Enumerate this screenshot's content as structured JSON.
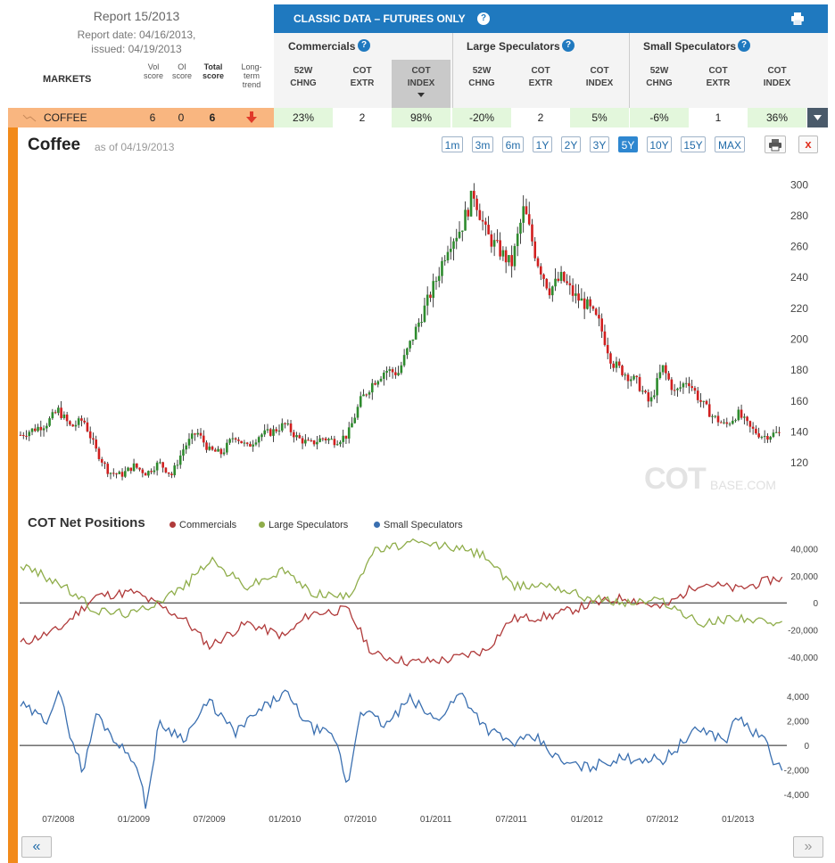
{
  "report": {
    "title": "Report 15/2013",
    "date": "Report date: 04/16/2013,",
    "issued": "issued: 04/19/2013"
  },
  "markets_header": {
    "markets": "MARKETS",
    "vol_score": "Vol score",
    "oi_score": "OI score",
    "total_score": "Total score",
    "long_term_trend": "Long-term trend"
  },
  "classic": {
    "title": "CLASSIC DATA – FUTURES ONLY",
    "help": "?",
    "groups": [
      {
        "label": "Commercials"
      },
      {
        "label": "Large Speculators"
      },
      {
        "label": "Small Speculators"
      }
    ],
    "subheaders": [
      {
        "l1": "52W",
        "l2": "CHNG"
      },
      {
        "l1": "COT",
        "l2": "EXTR"
      },
      {
        "l1": "COT",
        "l2": "INDEX"
      }
    ]
  },
  "row": {
    "name": "COFFEE",
    "vol_score": "6",
    "oi_score": "0",
    "total_score": "6",
    "trend": "down",
    "cells": [
      "23%",
      "2",
      "98%",
      "-20%",
      "2",
      "5%",
      "-6%",
      "1",
      "36%"
    ]
  },
  "chart_header": {
    "title": "Coffee",
    "asof": "as of 04/19/2013",
    "ranges": [
      "1m",
      "3m",
      "6m",
      "1Y",
      "2Y",
      "3Y",
      "5Y",
      "10Y",
      "15Y",
      "MAX"
    ],
    "active_range": "5Y",
    "close": "x"
  },
  "watermark": {
    "main": "COT",
    "suffix": "BASE.COM"
  },
  "cot_panel": {
    "title": "COT Net Positions",
    "legend": [
      "Commercials",
      "Large Speculators",
      "Small Speculators"
    ]
  },
  "nav": {
    "prev": "«",
    "next": "»"
  },
  "colors": {
    "up_candle": "#2e8b2e",
    "down_candle": "#d11f1f",
    "commercials": "#b03a3a",
    "large_specs": "#8fad4a",
    "small_specs": "#3a6fb0",
    "accent": "#1f79bf",
    "row_highlight": "#f9b680",
    "stripe": "#f28a1a"
  },
  "chart_data": [
    {
      "type": "candlestick",
      "title": "Coffee",
      "x_range": [
        "2008-04",
        "2013-04"
      ],
      "ylim": [
        105,
        310
      ],
      "y_ticks": [
        120,
        140,
        160,
        180,
        200,
        220,
        240,
        260,
        280,
        300
      ],
      "x_ticks": [
        "07/2008",
        "01/2009",
        "07/2009",
        "01/2010",
        "07/2010",
        "01/2011",
        "07/2011",
        "01/2012",
        "07/2012",
        "01/2013"
      ],
      "close_path": [
        {
          "x": "2008-04",
          "y": 138
        },
        {
          "x": "2008-06",
          "y": 145
        },
        {
          "x": "2008-07",
          "y": 154
        },
        {
          "x": "2008-08",
          "y": 143
        },
        {
          "x": "2008-09",
          "y": 148
        },
        {
          "x": "2008-10",
          "y": 128
        },
        {
          "x": "2008-11",
          "y": 114
        },
        {
          "x": "2008-12",
          "y": 112
        },
        {
          "x": "2009-01",
          "y": 118
        },
        {
          "x": "2009-02",
          "y": 113
        },
        {
          "x": "2009-03",
          "y": 120
        },
        {
          "x": "2009-04",
          "y": 112
        },
        {
          "x": "2009-05",
          "y": 130
        },
        {
          "x": "2009-06",
          "y": 140
        },
        {
          "x": "2009-07",
          "y": 128
        },
        {
          "x": "2009-08",
          "y": 126
        },
        {
          "x": "2009-09",
          "y": 138
        },
        {
          "x": "2009-10",
          "y": 130
        },
        {
          "x": "2009-11",
          "y": 138
        },
        {
          "x": "2009-12",
          "y": 140
        },
        {
          "x": "2010-01",
          "y": 145
        },
        {
          "x": "2010-02",
          "y": 136
        },
        {
          "x": "2010-03",
          "y": 132
        },
        {
          "x": "2010-04",
          "y": 136
        },
        {
          "x": "2010-05",
          "y": 134
        },
        {
          "x": "2010-06",
          "y": 138
        },
        {
          "x": "2010-07",
          "y": 160
        },
        {
          "x": "2010-08",
          "y": 172
        },
        {
          "x": "2010-09",
          "y": 180
        },
        {
          "x": "2010-10",
          "y": 178
        },
        {
          "x": "2010-11",
          "y": 198
        },
        {
          "x": "2010-12",
          "y": 218
        },
        {
          "x": "2011-01",
          "y": 238
        },
        {
          "x": "2011-02",
          "y": 262
        },
        {
          "x": "2011-03",
          "y": 272
        },
        {
          "x": "2011-04",
          "y": 295
        },
        {
          "x": "2011-05",
          "y": 268
        },
        {
          "x": "2011-06",
          "y": 258
        },
        {
          "x": "2011-07",
          "y": 248
        },
        {
          "x": "2011-08",
          "y": 285
        },
        {
          "x": "2011-09",
          "y": 252
        },
        {
          "x": "2011-10",
          "y": 232
        },
        {
          "x": "2011-11",
          "y": 240
        },
        {
          "x": "2011-12",
          "y": 228
        },
        {
          "x": "2012-01",
          "y": 222
        },
        {
          "x": "2012-02",
          "y": 210
        },
        {
          "x": "2012-03",
          "y": 185
        },
        {
          "x": "2012-04",
          "y": 178
        },
        {
          "x": "2012-05",
          "y": 172
        },
        {
          "x": "2012-06",
          "y": 158
        },
        {
          "x": "2012-07",
          "y": 182
        },
        {
          "x": "2012-08",
          "y": 165
        },
        {
          "x": "2012-09",
          "y": 174
        },
        {
          "x": "2012-10",
          "y": 160
        },
        {
          "x": "2012-11",
          "y": 150
        },
        {
          "x": "2012-12",
          "y": 144
        },
        {
          "x": "2013-01",
          "y": 152
        },
        {
          "x": "2013-02",
          "y": 142
        },
        {
          "x": "2013-03",
          "y": 137
        },
        {
          "x": "2013-04",
          "y": 139
        }
      ]
    },
    {
      "type": "line",
      "title": "COT Net Positions",
      "ylim": [
        -50000,
        45000
      ],
      "y_ticks": [
        40000,
        20000,
        0,
        -20000,
        -40000
      ],
      "y_tick_labels": [
        "40,000",
        "20,000",
        "0",
        "-20,000",
        "-40,000"
      ],
      "series": [
        {
          "name": "Commercials",
          "values": [
            {
              "x": "2008-04",
              "y": -30000
            },
            {
              "x": "2008-07",
              "y": -20000
            },
            {
              "x": "2008-10",
              "y": 5000
            },
            {
              "x": "2009-01",
              "y": 8000
            },
            {
              "x": "2009-03",
              "y": -2000
            },
            {
              "x": "2009-05",
              "y": -12000
            },
            {
              "x": "2009-07",
              "y": -32000
            },
            {
              "x": "2009-10",
              "y": -15000
            },
            {
              "x": "2010-01",
              "y": -25000
            },
            {
              "x": "2010-03",
              "y": -8000
            },
            {
              "x": "2010-06",
              "y": -5000
            },
            {
              "x": "2010-08",
              "y": -38000
            },
            {
              "x": "2010-11",
              "y": -44000
            },
            {
              "x": "2011-02",
              "y": -42000
            },
            {
              "x": "2011-05",
              "y": -35000
            },
            {
              "x": "2011-07",
              "y": -12000
            },
            {
              "x": "2011-10",
              "y": -10000
            },
            {
              "x": "2012-01",
              "y": -2000
            },
            {
              "x": "2012-04",
              "y": 4000
            },
            {
              "x": "2012-07",
              "y": -4000
            },
            {
              "x": "2012-10",
              "y": 15000
            },
            {
              "x": "2013-01",
              "y": 10000
            },
            {
              "x": "2013-04",
              "y": 18000
            }
          ]
        },
        {
          "name": "Large Speculators",
          "values": [
            {
              "x": "2008-04",
              "y": 28000
            },
            {
              "x": "2008-07",
              "y": 15000
            },
            {
              "x": "2008-10",
              "y": -6000
            },
            {
              "x": "2009-01",
              "y": -8000
            },
            {
              "x": "2009-03",
              "y": 2000
            },
            {
              "x": "2009-05",
              "y": 12000
            },
            {
              "x": "2009-07",
              "y": 32000
            },
            {
              "x": "2009-10",
              "y": 12000
            },
            {
              "x": "2010-01",
              "y": 24000
            },
            {
              "x": "2010-03",
              "y": 8000
            },
            {
              "x": "2010-06",
              "y": 4000
            },
            {
              "x": "2010-08",
              "y": 38000
            },
            {
              "x": "2010-11",
              "y": 44000
            },
            {
              "x": "2011-02",
              "y": 42000
            },
            {
              "x": "2011-05",
              "y": 35000
            },
            {
              "x": "2011-07",
              "y": 12000
            },
            {
              "x": "2011-10",
              "y": 14000
            },
            {
              "x": "2012-01",
              "y": 4000
            },
            {
              "x": "2012-04",
              "y": 0
            },
            {
              "x": "2012-07",
              "y": 2000
            },
            {
              "x": "2012-10",
              "y": -16000
            },
            {
              "x": "2013-01",
              "y": -10000
            },
            {
              "x": "2013-04",
              "y": -17000
            }
          ]
        }
      ]
    },
    {
      "type": "line",
      "ylim": [
        -5000,
        4800
      ],
      "y_ticks": [
        4000,
        2000,
        0,
        -2000,
        -4000
      ],
      "y_tick_labels": [
        "4,000",
        "2,000",
        "0",
        "-2,000",
        "-4,000"
      ],
      "series": [
        {
          "name": "Small Speculators",
          "values": [
            {
              "x": "2008-04",
              "y": 3300
            },
            {
              "x": "2008-06",
              "y": 2000
            },
            {
              "x": "2008-07",
              "y": 4400
            },
            {
              "x": "2008-08",
              "y": 800
            },
            {
              "x": "2008-09",
              "y": -2200
            },
            {
              "x": "2008-10",
              "y": 2600
            },
            {
              "x": "2008-12",
              "y": -200
            },
            {
              "x": "2009-01",
              "y": -1000
            },
            {
              "x": "2009-02",
              "y": -5000
            },
            {
              "x": "2009-03",
              "y": 1800
            },
            {
              "x": "2009-05",
              "y": 600
            },
            {
              "x": "2009-07",
              "y": 3600
            },
            {
              "x": "2009-09",
              "y": 1000
            },
            {
              "x": "2009-11",
              "y": 2800
            },
            {
              "x": "2010-01",
              "y": 4300
            },
            {
              "x": "2010-03",
              "y": 1500
            },
            {
              "x": "2010-05",
              "y": 600
            },
            {
              "x": "2010-06",
              "y": -3400
            },
            {
              "x": "2010-07",
              "y": 3000
            },
            {
              "x": "2010-09",
              "y": 1600
            },
            {
              "x": "2010-11",
              "y": 3800
            },
            {
              "x": "2011-01",
              "y": 2000
            },
            {
              "x": "2011-03",
              "y": 4300
            },
            {
              "x": "2011-05",
              "y": 1400
            },
            {
              "x": "2011-07",
              "y": 200
            },
            {
              "x": "2011-09",
              "y": 600
            },
            {
              "x": "2011-11",
              "y": -1400
            },
            {
              "x": "2012-01",
              "y": -1800
            },
            {
              "x": "2012-03",
              "y": -1200
            },
            {
              "x": "2012-05",
              "y": -1000
            },
            {
              "x": "2012-07",
              "y": -1200
            },
            {
              "x": "2012-09",
              "y": 600
            },
            {
              "x": "2012-10",
              "y": 1400
            },
            {
              "x": "2012-12",
              "y": 400
            },
            {
              "x": "2013-01",
              "y": 2400
            },
            {
              "x": "2013-02",
              "y": 1200
            },
            {
              "x": "2013-03",
              "y": 600
            },
            {
              "x": "2013-04",
              "y": -1600
            }
          ]
        }
      ]
    }
  ]
}
